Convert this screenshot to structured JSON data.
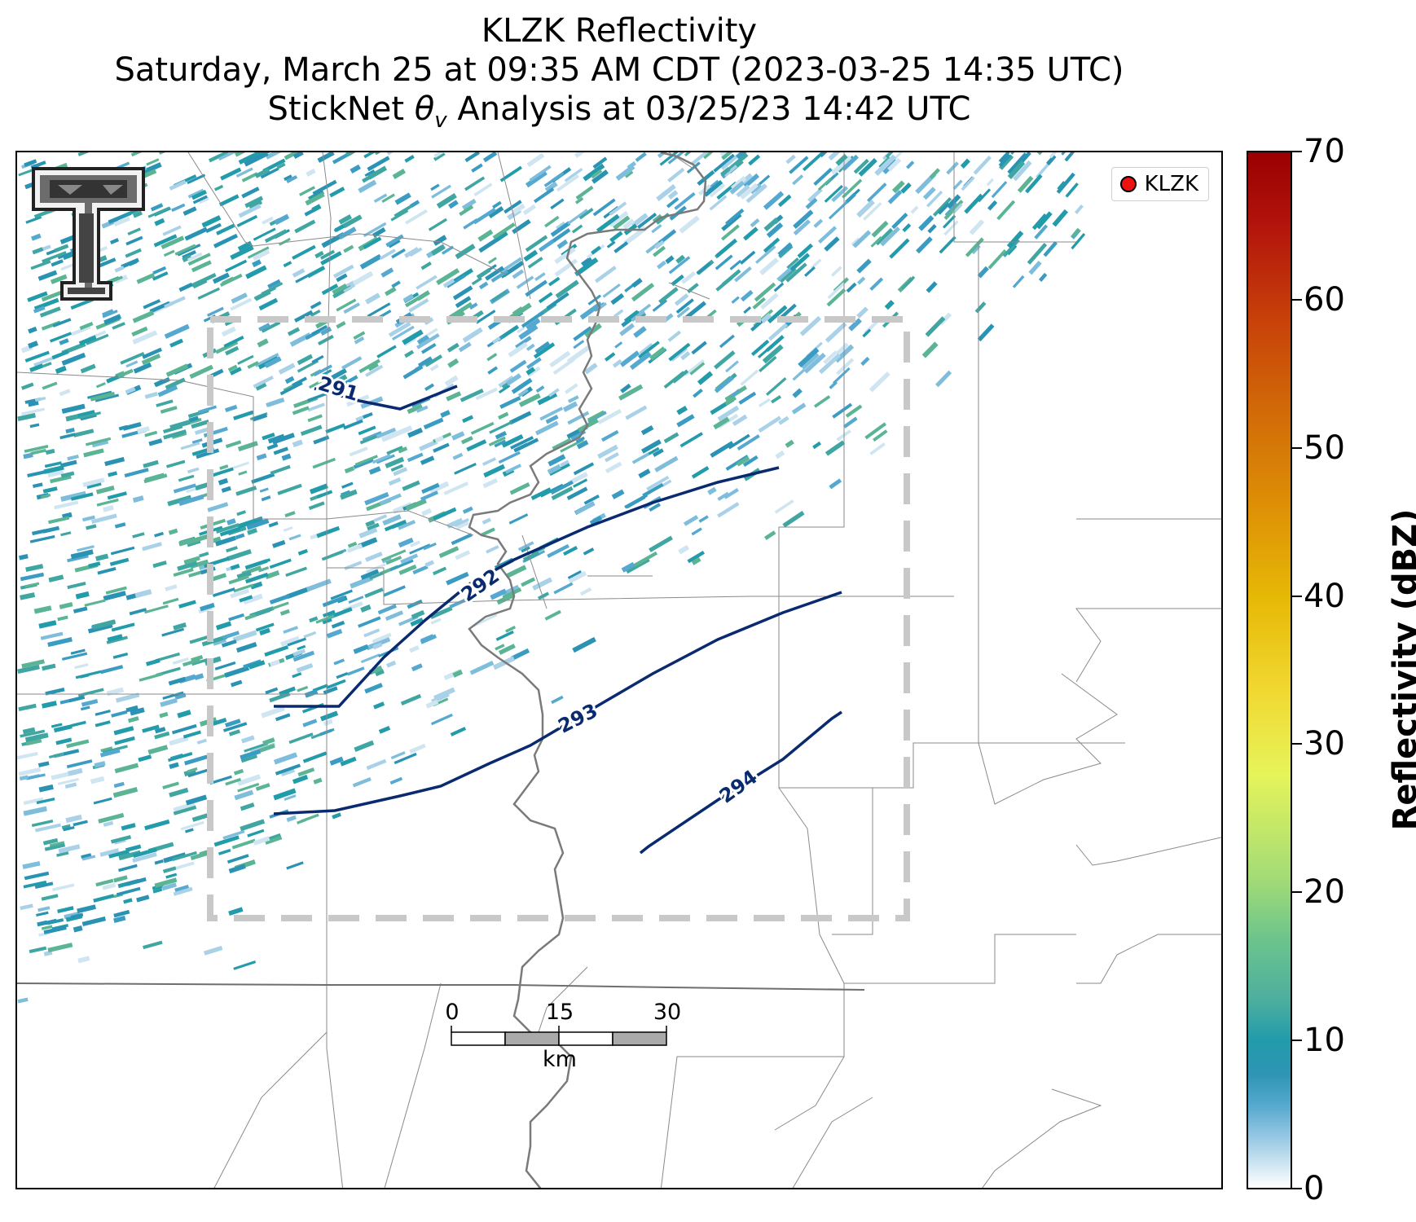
{
  "title": {
    "line1": "KLZK Reflectivity",
    "line2": "Saturday, March 25 at 09:35 AM CDT (2023-03-25 14:35 UTC)",
    "line3_prefix": "StickNet ",
    "line3_symbol": "θ",
    "line3_sub": "v",
    "line3_suffix": " Analysis at 03/25/23 14:42 UTC"
  },
  "legend": {
    "label": "KLZK",
    "marker_color": "#ee1111"
  },
  "colorbar": {
    "label": "Reflectivity (dBZ)",
    "ticks": [
      "0",
      "10",
      "20",
      "30",
      "40",
      "50",
      "60",
      "70"
    ],
    "range": [
      0,
      70
    ]
  },
  "contours": {
    "color": "#0a2a70",
    "labels": [
      "291",
      "292",
      "293",
      "294"
    ]
  },
  "scale_bar": {
    "ticks": [
      "0",
      "15",
      "30"
    ],
    "unit": "km"
  },
  "logo": {
    "name": "Texas Tech double-T logo"
  },
  "colors": {
    "county_lines": "#8a8a8a",
    "state_line": "#6e6e6e",
    "river": "#7a7a7a",
    "domain_box": "#c8c8c8"
  }
}
